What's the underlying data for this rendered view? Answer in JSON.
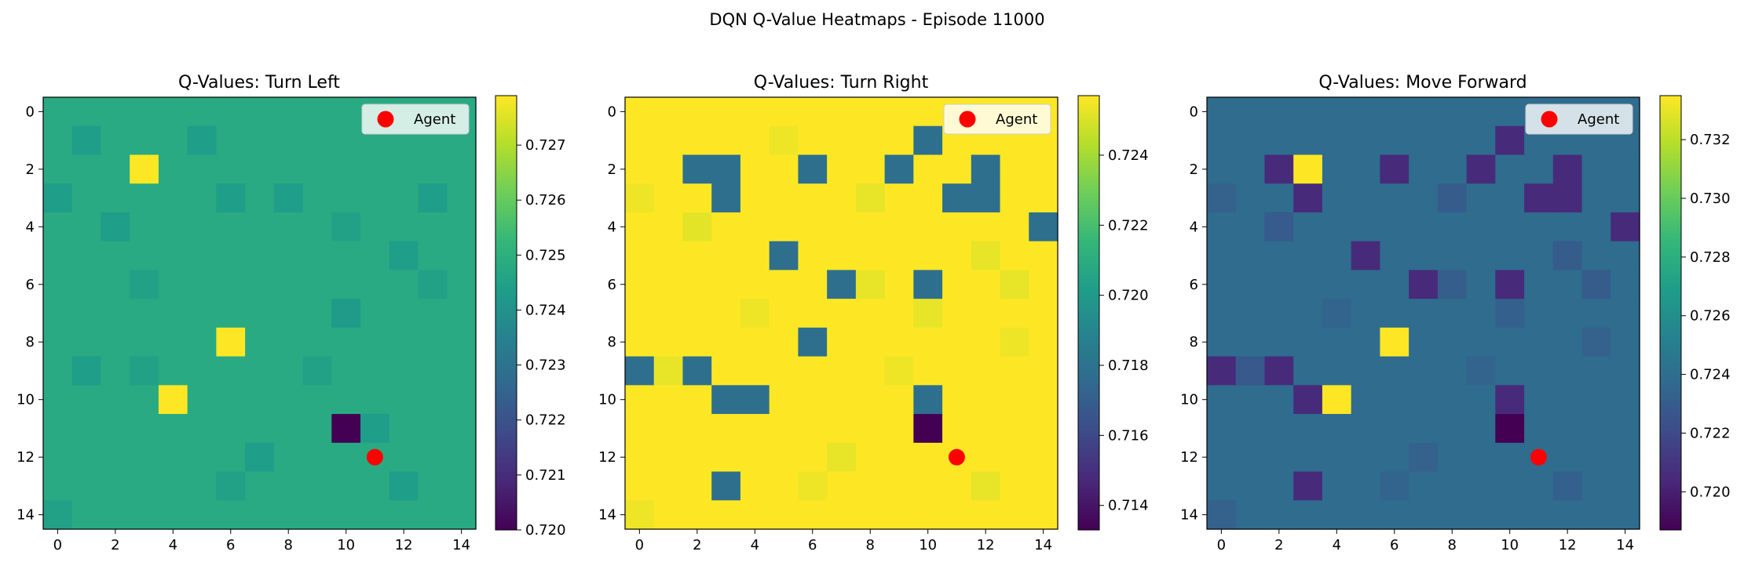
{
  "figure_title": "DQN Q-Value Heatmaps - Episode 11000",
  "colormap": "viridis",
  "colormap_stops": [
    "#440154",
    "#482878",
    "#3e4a89",
    "#31688e",
    "#26828e",
    "#1f9e89",
    "#35b779",
    "#6ece58",
    "#b5de2b",
    "#fde725"
  ],
  "agent_color": "#ff0000",
  "chart_data": [
    {
      "type": "heatmap",
      "title": "Q-Values: Turn Left",
      "grid_size": 15,
      "xticks": [
        "0",
        "2",
        "4",
        "6",
        "8",
        "10",
        "12",
        "14"
      ],
      "yticks": [
        "0",
        "2",
        "4",
        "6",
        "8",
        "10",
        "12",
        "14"
      ],
      "legend": {
        "label": "Agent",
        "placement": "top-right"
      },
      "agent": {
        "x": 11,
        "y": 12
      },
      "colorbar": {
        "min": 0.72,
        "max": 0.7279,
        "ticks": [
          "0.720",
          "0.721",
          "0.722",
          "0.723",
          "0.724",
          "0.725",
          "0.726",
          "0.727"
        ]
      },
      "base_value": 0.7248,
      "cells": [
        {
          "x": 3,
          "y": 2,
          "value": 0.7279
        },
        {
          "x": 6,
          "y": 8,
          "value": 0.7279
        },
        {
          "x": 4,
          "y": 10,
          "value": 0.7279
        },
        {
          "x": 10,
          "y": 11,
          "value": 0.72
        },
        {
          "x": 1,
          "y": 1,
          "value": 0.7244
        },
        {
          "x": 5,
          "y": 1,
          "value": 0.7244
        },
        {
          "x": 0,
          "y": 3,
          "value": 0.7244
        },
        {
          "x": 2,
          "y": 4,
          "value": 0.7244
        },
        {
          "x": 6,
          "y": 3,
          "value": 0.7244
        },
        {
          "x": 8,
          "y": 3,
          "value": 0.7244
        },
        {
          "x": 13,
          "y": 3,
          "value": 0.7244
        },
        {
          "x": 12,
          "y": 5,
          "value": 0.7244
        },
        {
          "x": 3,
          "y": 6,
          "value": 0.7245
        },
        {
          "x": 10,
          "y": 7,
          "value": 0.7243
        },
        {
          "x": 1,
          "y": 9,
          "value": 0.7244
        },
        {
          "x": 3,
          "y": 9,
          "value": 0.7245
        },
        {
          "x": 9,
          "y": 9,
          "value": 0.7245
        },
        {
          "x": 11,
          "y": 11,
          "value": 0.7244
        },
        {
          "x": 7,
          "y": 12,
          "value": 0.7244
        },
        {
          "x": 12,
          "y": 13,
          "value": 0.7244
        },
        {
          "x": 6,
          "y": 13,
          "value": 0.7245
        },
        {
          "x": 0,
          "y": 14,
          "value": 0.7245
        },
        {
          "x": 10,
          "y": 4,
          "value": 0.7245
        },
        {
          "x": 13,
          "y": 6,
          "value": 0.7245
        }
      ]
    },
    {
      "type": "heatmap",
      "title": "Q-Values: Turn Right",
      "grid_size": 15,
      "xticks": [
        "0",
        "2",
        "4",
        "6",
        "8",
        "10",
        "12",
        "14"
      ],
      "yticks": [
        "0",
        "2",
        "4",
        "6",
        "8",
        "10",
        "12",
        "14"
      ],
      "legend": {
        "label": "Agent",
        "placement": "top-right"
      },
      "agent": {
        "x": 11,
        "y": 12
      },
      "colorbar": {
        "min": 0.7133,
        "max": 0.7257,
        "ticks": [
          "0.714",
          "0.716",
          "0.718",
          "0.720",
          "0.722",
          "0.724"
        ]
      },
      "base_value": 0.7257,
      "cells": [
        {
          "x": 10,
          "y": 1,
          "value": 0.7178
        },
        {
          "x": 2,
          "y": 2,
          "value": 0.7178
        },
        {
          "x": 3,
          "y": 2,
          "value": 0.7178
        },
        {
          "x": 6,
          "y": 2,
          "value": 0.7178
        },
        {
          "x": 9,
          "y": 2,
          "value": 0.7178
        },
        {
          "x": 12,
          "y": 2,
          "value": 0.7178
        },
        {
          "x": 3,
          "y": 3,
          "value": 0.7178
        },
        {
          "x": 11,
          "y": 3,
          "value": 0.7178
        },
        {
          "x": 12,
          "y": 3,
          "value": 0.7178
        },
        {
          "x": 14,
          "y": 4,
          "value": 0.7178
        },
        {
          "x": 5,
          "y": 5,
          "value": 0.7178
        },
        {
          "x": 7,
          "y": 6,
          "value": 0.7178
        },
        {
          "x": 10,
          "y": 6,
          "value": 0.7178
        },
        {
          "x": 6,
          "y": 8,
          "value": 0.7178
        },
        {
          "x": 0,
          "y": 9,
          "value": 0.7178
        },
        {
          "x": 2,
          "y": 9,
          "value": 0.7178
        },
        {
          "x": 3,
          "y": 10,
          "value": 0.7178
        },
        {
          "x": 4,
          "y": 10,
          "value": 0.7178
        },
        {
          "x": 10,
          "y": 10,
          "value": 0.7178
        },
        {
          "x": 10,
          "y": 11,
          "value": 0.7133
        },
        {
          "x": 3,
          "y": 13,
          "value": 0.7178
        },
        {
          "x": 2,
          "y": 4,
          "value": 0.7252
        },
        {
          "x": 1,
          "y": 9,
          "value": 0.7253
        },
        {
          "x": 8,
          "y": 3,
          "value": 0.7253
        },
        {
          "x": 12,
          "y": 5,
          "value": 0.7253
        },
        {
          "x": 13,
          "y": 6,
          "value": 0.7253
        },
        {
          "x": 4,
          "y": 7,
          "value": 0.7254
        },
        {
          "x": 8,
          "y": 6,
          "value": 0.7253
        },
        {
          "x": 10,
          "y": 7,
          "value": 0.7253
        },
        {
          "x": 7,
          "y": 12,
          "value": 0.7253
        },
        {
          "x": 12,
          "y": 13,
          "value": 0.7253
        },
        {
          "x": 6,
          "y": 13,
          "value": 0.7254
        },
        {
          "x": 0,
          "y": 14,
          "value": 0.7254
        },
        {
          "x": 13,
          "y": 8,
          "value": 0.7254
        },
        {
          "x": 9,
          "y": 9,
          "value": 0.7254
        },
        {
          "x": 5,
          "y": 1,
          "value": 0.7254
        },
        {
          "x": 0,
          "y": 3,
          "value": 0.7254
        }
      ]
    },
    {
      "type": "heatmap",
      "title": "Q-Values: Move Forward",
      "grid_size": 15,
      "xticks": [
        "0",
        "2",
        "4",
        "6",
        "8",
        "10",
        "12",
        "14"
      ],
      "yticks": [
        "0",
        "2",
        "4",
        "6",
        "8",
        "10",
        "12",
        "14"
      ],
      "legend": {
        "label": "Agent",
        "placement": "top-right"
      },
      "agent": {
        "x": 11,
        "y": 12
      },
      "colorbar": {
        "min": 0.7187,
        "max": 0.7335,
        "ticks": [
          "0.720",
          "0.722",
          "0.724",
          "0.726",
          "0.728",
          "0.730",
          "0.732"
        ]
      },
      "base_value": 0.7239,
      "cells": [
        {
          "x": 3,
          "y": 2,
          "value": 0.7335
        },
        {
          "x": 6,
          "y": 8,
          "value": 0.7335
        },
        {
          "x": 4,
          "y": 10,
          "value": 0.7335
        },
        {
          "x": 10,
          "y": 11,
          "value": 0.7187
        },
        {
          "x": 2,
          "y": 2,
          "value": 0.7205
        },
        {
          "x": 6,
          "y": 2,
          "value": 0.7205
        },
        {
          "x": 9,
          "y": 2,
          "value": 0.7205
        },
        {
          "x": 12,
          "y": 2,
          "value": 0.7205
        },
        {
          "x": 10,
          "y": 1,
          "value": 0.7205
        },
        {
          "x": 3,
          "y": 3,
          "value": 0.7205
        },
        {
          "x": 11,
          "y": 3,
          "value": 0.7205
        },
        {
          "x": 12,
          "y": 3,
          "value": 0.7205
        },
        {
          "x": 14,
          "y": 4,
          "value": 0.7205
        },
        {
          "x": 5,
          "y": 5,
          "value": 0.7205
        },
        {
          "x": 7,
          "y": 6,
          "value": 0.7205
        },
        {
          "x": 10,
          "y": 6,
          "value": 0.7205
        },
        {
          "x": 0,
          "y": 9,
          "value": 0.7205
        },
        {
          "x": 2,
          "y": 9,
          "value": 0.7205
        },
        {
          "x": 3,
          "y": 10,
          "value": 0.7205
        },
        {
          "x": 10,
          "y": 10,
          "value": 0.7205
        },
        {
          "x": 3,
          "y": 13,
          "value": 0.7205
        },
        {
          "x": 1,
          "y": 9,
          "value": 0.7228
        },
        {
          "x": 2,
          "y": 4,
          "value": 0.7229
        },
        {
          "x": 8,
          "y": 3,
          "value": 0.723
        },
        {
          "x": 12,
          "y": 5,
          "value": 0.723
        },
        {
          "x": 13,
          "y": 6,
          "value": 0.723
        },
        {
          "x": 8,
          "y": 6,
          "value": 0.7231
        },
        {
          "x": 10,
          "y": 7,
          "value": 0.7232
        },
        {
          "x": 7,
          "y": 12,
          "value": 0.7233
        },
        {
          "x": 12,
          "y": 13,
          "value": 0.7232
        },
        {
          "x": 6,
          "y": 13,
          "value": 0.7234
        },
        {
          "x": 0,
          "y": 14,
          "value": 0.7233
        },
        {
          "x": 13,
          "y": 8,
          "value": 0.7233
        },
        {
          "x": 9,
          "y": 9,
          "value": 0.7234
        },
        {
          "x": 0,
          "y": 3,
          "value": 0.7233
        },
        {
          "x": 4,
          "y": 7,
          "value": 0.7234
        }
      ]
    }
  ]
}
